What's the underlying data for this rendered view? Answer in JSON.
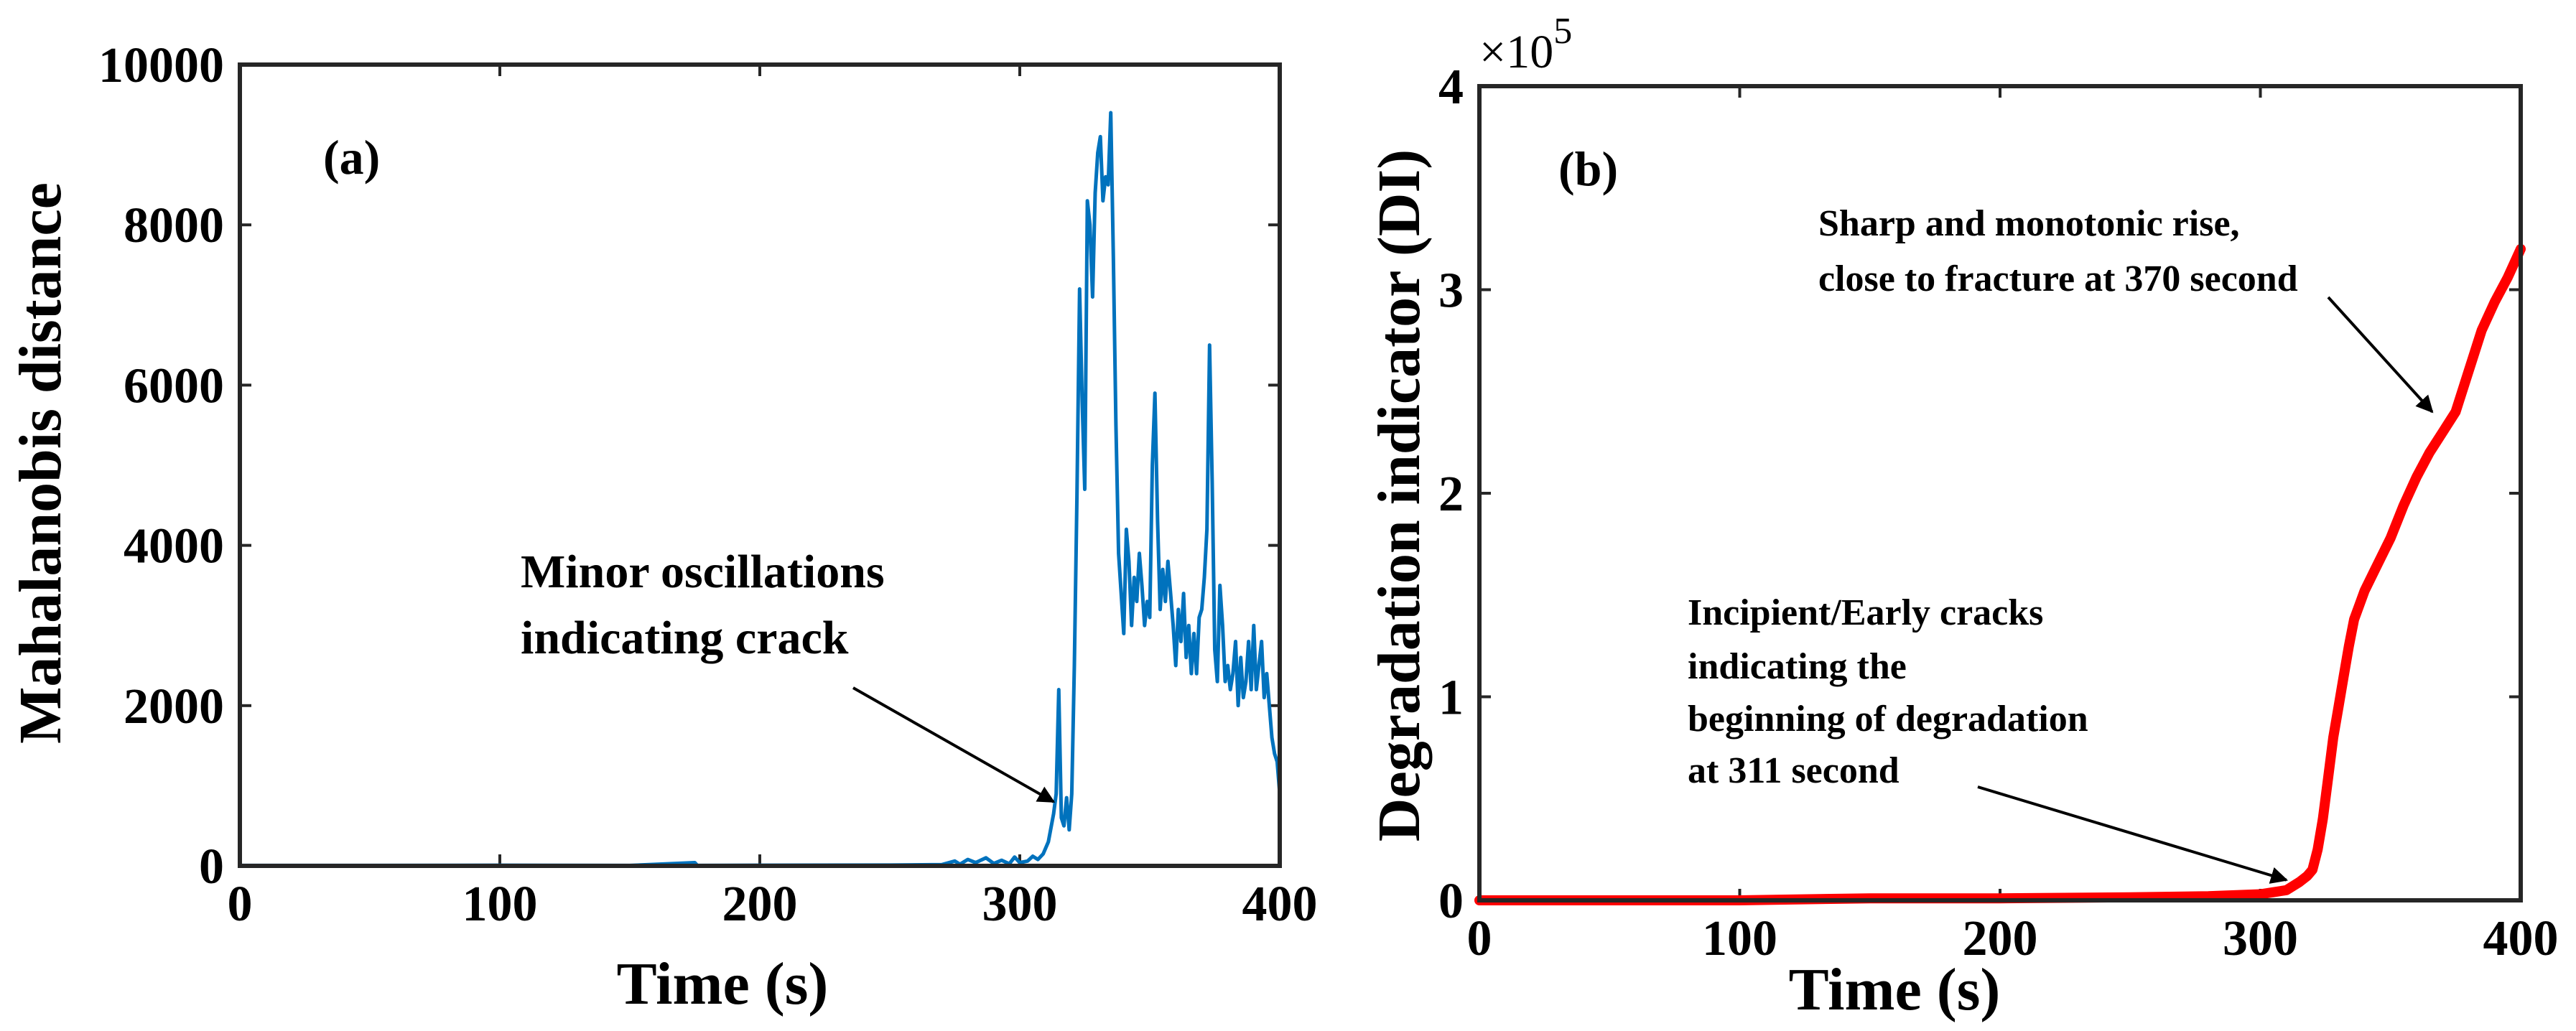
{
  "chart_data": [
    {
      "type": "line",
      "panel_label": "(a)",
      "xlabel": "Time (s)",
      "ylabel": "Mahalanobis distance",
      "xlim": [
        0,
        400
      ],
      "ylim": [
        0,
        10000
      ],
      "xticks": [
        0,
        100,
        200,
        300,
        400
      ],
      "yticks": [
        0,
        2000,
        4000,
        6000,
        8000,
        10000
      ],
      "series": [
        {
          "name": "Mahalanobis distance",
          "color": "#0072BD",
          "x": [
            0,
            50,
            100,
            150,
            175,
            176,
            200,
            250,
            270,
            275,
            277,
            280,
            283,
            287,
            290,
            293,
            296,
            298,
            300,
            303,
            305,
            307,
            309,
            311,
            313,
            314,
            315,
            316,
            317,
            318,
            319,
            320,
            321,
            322,
            323,
            324,
            325,
            326,
            327,
            328,
            329,
            330,
            331,
            332,
            333,
            334,
            335,
            336,
            337,
            338,
            339,
            340,
            341,
            342,
            343,
            344,
            345,
            346,
            347,
            348,
            349,
            350,
            351,
            352,
            353,
            354,
            355,
            356,
            357,
            358,
            359,
            360,
            361,
            362,
            363,
            364,
            365,
            366,
            367,
            368,
            369,
            370,
            371,
            372,
            373,
            374,
            375,
            376,
            377,
            378,
            379,
            380,
            381,
            382,
            383,
            384,
            385,
            386,
            387,
            388,
            389,
            390,
            391,
            392,
            393,
            394,
            395,
            396,
            397,
            398,
            399,
            400
          ],
          "values": [
            5,
            5,
            8,
            5,
            40,
            5,
            8,
            10,
            15,
            60,
            20,
            80,
            40,
            100,
            30,
            70,
            25,
            110,
            40,
            60,
            120,
            80,
            150,
            300,
            650,
            900,
            2200,
            600,
            500,
            850,
            450,
            900,
            2500,
            4600,
            7200,
            5800,
            4700,
            8300,
            8000,
            7100,
            8400,
            8900,
            9100,
            8300,
            8600,
            8500,
            9400,
            7600,
            5500,
            3900,
            3400,
            2900,
            4200,
            3800,
            3000,
            3600,
            3300,
            3900,
            3500,
            3000,
            3300,
            3100,
            5000,
            5900,
            4300,
            3200,
            3700,
            3300,
            3800,
            3400,
            3000,
            2500,
            3200,
            2800,
            3400,
            2600,
            3000,
            2400,
            2900,
            2400,
            3100,
            3200,
            3600,
            4200,
            6500,
            4800,
            2700,
            2300,
            3500,
            3000,
            2300,
            2500,
            2200,
            2400,
            2800,
            2000,
            2600,
            2100,
            2300,
            2800,
            2200,
            3000,
            2200,
            2500,
            2800,
            2100,
            2400,
            2000,
            1600,
            1400,
            1300,
            900
          ]
        }
      ],
      "annotation": {
        "lines": [
          "Minor oscillations",
          "indicating crack"
        ],
        "target_x": 313,
        "target_y": 800
      }
    },
    {
      "type": "line",
      "panel_label": "(b)",
      "xlabel": "Time (s)",
      "ylabel": "Degradation indicator (DI)",
      "xlim": [
        0,
        400
      ],
      "ylim": [
        0,
        4
      ],
      "y_multiplier": "×10",
      "y_multiplier_exponent": "5",
      "xticks": [
        0,
        100,
        200,
        300,
        400
      ],
      "yticks": [
        0,
        1,
        2,
        3,
        4
      ],
      "series": [
        {
          "name": "DI",
          "color": "#FF0000",
          "x": [
            0,
            50,
            100,
            150,
            200,
            250,
            280,
            300,
            305,
            310,
            315,
            318,
            320,
            322,
            324,
            326,
            328,
            330,
            332,
            334,
            336,
            338,
            340,
            345,
            350,
            355,
            360,
            365,
            370,
            375,
            380,
            385,
            390,
            395,
            400
          ],
          "values": [
            0.0,
            0.0,
            0.0,
            0.01,
            0.01,
            0.015,
            0.02,
            0.03,
            0.04,
            0.05,
            0.09,
            0.12,
            0.15,
            0.25,
            0.4,
            0.6,
            0.8,
            0.95,
            1.1,
            1.25,
            1.38,
            1.45,
            1.52,
            1.65,
            1.78,
            1.94,
            2.08,
            2.2,
            2.3,
            2.4,
            2.6,
            2.8,
            2.94,
            3.06,
            3.2
          ]
        }
      ],
      "annotations": [
        {
          "lines": [
            "Sharp and monotonic rise,",
            "close to fracture at 370 second"
          ],
          "target_x": 366,
          "target_y": 2.4
        },
        {
          "lines": [
            "Incipient/Early cracks",
            "indicating the",
            "beginning of  degradation",
            "at 311 second"
          ],
          "target_x": 310,
          "target_y": 0.1
        }
      ]
    }
  ]
}
